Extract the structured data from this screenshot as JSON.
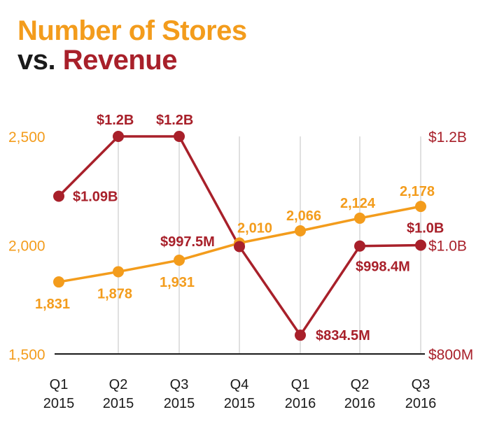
{
  "title": {
    "line1": "Number of Stores",
    "line2_prefix": "vs.",
    "line2_highlight": "Revenue"
  },
  "colors": {
    "stores": "#f39c1c",
    "revenue": "#a8202a",
    "grid": "#cccccc",
    "axis": "#1a1a1a"
  },
  "chart_data": {
    "type": "line",
    "categories": [
      [
        "Q1",
        "2015"
      ],
      [
        "Q2",
        "2015"
      ],
      [
        "Q3",
        "2015"
      ],
      [
        "Q4",
        "2015"
      ],
      [
        "Q1",
        "2016"
      ],
      [
        "Q2",
        "2016"
      ],
      [
        "Q3",
        "2016"
      ]
    ],
    "left_axis": {
      "ylim": [
        1500,
        2500
      ],
      "ticks": [
        2500,
        2000,
        1500
      ],
      "tick_labels": [
        "2,500",
        "2,000",
        "1,500"
      ]
    },
    "right_axis": {
      "ylim": [
        0.8,
        1.2
      ],
      "ticks": [
        1.2,
        1.0,
        0.8
      ],
      "tick_labels": [
        "$1.2B",
        "$1.0B",
        "$800M"
      ]
    },
    "grid": "vertical",
    "series": [
      {
        "key": "stores",
        "axis": "left",
        "values": [
          1831,
          1878,
          1931,
          2010,
          2066,
          2124,
          2178
        ],
        "labels": [
          "1,831",
          "1,878",
          "1,931",
          "2,010",
          "2,066",
          "2,124",
          "2,178"
        ]
      },
      {
        "key": "revenue",
        "axis": "right",
        "values": [
          1.09,
          1.2,
          1.2,
          0.9975,
          0.8345,
          0.9984,
          1.0
        ],
        "labels": [
          "$1.09B",
          "$1.2B",
          "$1.2B",
          "$997.5M",
          "$834.5M",
          "$998.4M",
          "$1.0B"
        ]
      }
    ]
  }
}
